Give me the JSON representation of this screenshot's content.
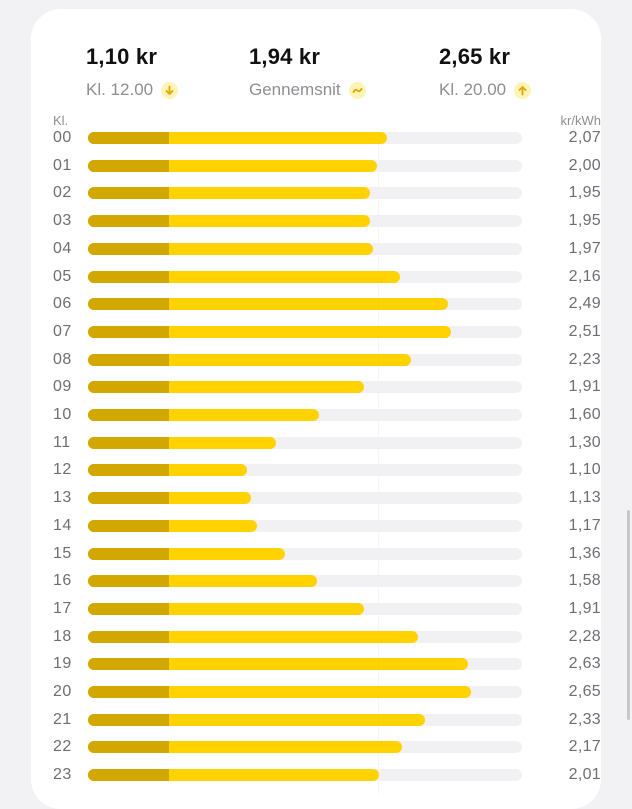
{
  "summary": {
    "low": {
      "value": "1,10 kr",
      "label": "Kl. 12.00",
      "icon": "arrow-down-icon"
    },
    "average": {
      "value": "1,94 kr",
      "label": "Gennemsnit",
      "icon": "wave-icon"
    },
    "high": {
      "value": "2,65 kr",
      "label": "Kl. 20.00",
      "icon": "arrow-up-icon"
    }
  },
  "colors": {
    "bar": "#ffd200",
    "bar_base": "#d2a700",
    "track": "#f1f1f3",
    "icon_bg": "#fff3b8",
    "icon_fg": "#e0a800"
  },
  "chart_data": {
    "type": "bar",
    "orientation": "horizontal",
    "xlabel": "Kl.",
    "ylabel": "kr/kWh",
    "xlim": [
      0,
      3.0
    ],
    "categories": [
      "00",
      "01",
      "02",
      "03",
      "04",
      "05",
      "06",
      "07",
      "08",
      "09",
      "10",
      "11",
      "12",
      "13",
      "14",
      "15",
      "16",
      "17",
      "18",
      "19",
      "20",
      "21",
      "22",
      "23"
    ],
    "values": [
      2.07,
      2.0,
      1.95,
      1.95,
      1.97,
      2.16,
      2.49,
      2.51,
      2.23,
      1.91,
      1.6,
      1.3,
      1.1,
      1.13,
      1.17,
      1.36,
      1.58,
      1.91,
      2.28,
      2.63,
      2.65,
      2.33,
      2.17,
      2.01
    ],
    "value_labels": [
      "2,07",
      "2,00",
      "1,95",
      "1,95",
      "1,97",
      "2,16",
      "2,49",
      "2,51",
      "2,23",
      "1,91",
      "1,60",
      "1,30",
      "1,10",
      "1,13",
      "1,17",
      "1,36",
      "1,58",
      "1,91",
      "2,28",
      "2,63",
      "2,65",
      "2,33",
      "2,17",
      "2,01"
    ],
    "base_value": 0.56
  }
}
